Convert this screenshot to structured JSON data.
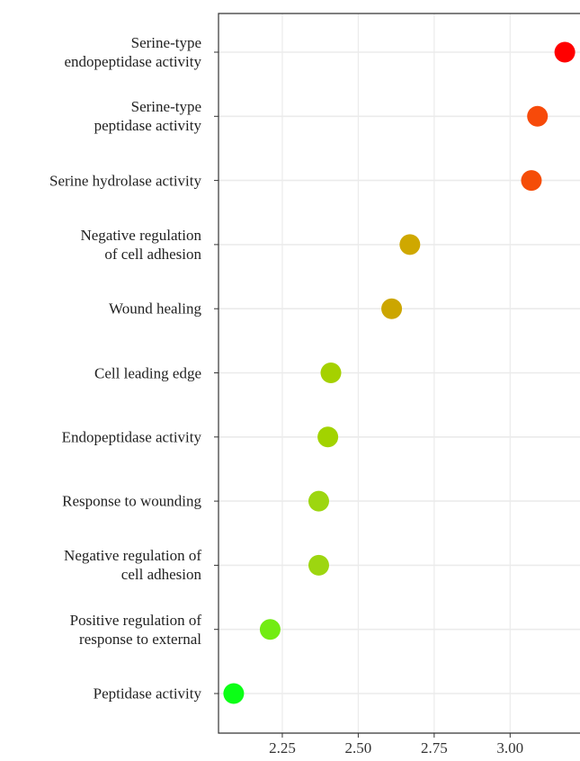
{
  "chart_data": {
    "type": "dot",
    "categories": [
      "Serine-type\nendopeptidase activity",
      "Serine-type\npeptidase activity",
      "Serine hydrolase activity",
      "Negative regulation\nof cell adhesion",
      "Wound healing",
      "Cell leading edge",
      "Endopeptidase activity",
      "Response to wounding",
      "Negative regulation of\ncell adhesion",
      "Positive regulation of\nresponse to external",
      "Peptidase activity"
    ],
    "values": [
      3.18,
      3.09,
      3.07,
      2.67,
      2.61,
      2.41,
      2.4,
      2.37,
      2.37,
      2.21,
      2.09
    ],
    "colors": [
      "#ff0000",
      "#f74a0a",
      "#f54d08",
      "#cfa800",
      "#cca600",
      "#a5d100",
      "#a2d300",
      "#9dd610",
      "#9dd610",
      "#72ec12",
      "#0bff16"
    ],
    "xlim": [
      2.04,
      3.23
    ],
    "xticks": [
      2.25,
      2.5,
      2.75,
      3.0
    ],
    "xtick_labels": [
      "2.25",
      "2.50",
      "2.75",
      "3.00"
    ],
    "grid": true
  }
}
